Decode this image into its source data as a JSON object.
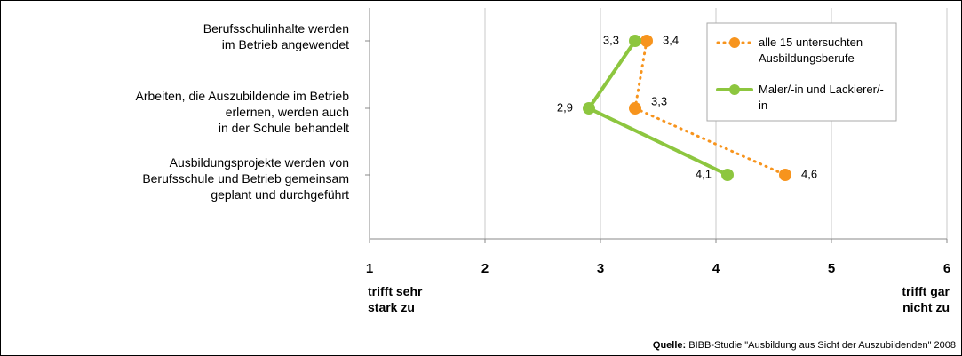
{
  "chart_data": {
    "type": "line",
    "orientation": "horizontal",
    "categories": [
      "Berufsschulinhalte werden\nim Betrieb angewendet",
      "Arbeiten, die Auszubildende  im Betrieb\nerlernen, werden auch\nin der Schule behandelt",
      "Ausbildungsprojekte werden von\nBerufsschule und Betrieb gemeinsam\ngeplant und durchgeführt"
    ],
    "series": [
      {
        "name": "alle 15 untersuchten Ausbildungsberufe",
        "color": "#f7941d",
        "dashed": true,
        "values": [
          3.4,
          3.3,
          4.6
        ],
        "value_labels": [
          "3,4",
          "3,3",
          "4,6"
        ]
      },
      {
        "name": "Maler/-in und Lackierer/-in",
        "color": "#8dc63f",
        "dashed": false,
        "values": [
          3.3,
          2.9,
          4.1
        ],
        "value_labels": [
          "3,3",
          "2,9",
          "4,1"
        ]
      }
    ],
    "xlim": [
      1,
      6
    ],
    "xticks": [
      1,
      2,
      3,
      4,
      5,
      6
    ],
    "x_min_label": "trifft sehr\nstark zu",
    "x_max_label": "trifft gar\nnicht zu",
    "grid": true,
    "legend": "upper right",
    "source_label": "Quelle:",
    "source": "BIBB-Studie \"Ausbildung aus Sicht der Auszubildenden\" 2008"
  }
}
